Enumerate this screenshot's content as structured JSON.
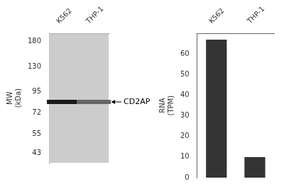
{
  "chart_data": [
    {
      "type": "gel",
      "categories": [
        "K562",
        "THP-1"
      ],
      "values": [
        83,
        83
      ],
      "colors": [
        "#1a1a1a",
        "#666666"
      ],
      "ylabel": [
        "MW",
        "(kDa)"
      ],
      "log": "y",
      "ylim": [
        38,
        200
      ],
      "yticks": [
        180,
        130,
        95,
        72,
        55,
        43
      ],
      "annotations": [
        {
          "text": "CD2AP",
          "y": 83
        }
      ],
      "grid": false
    },
    {
      "type": "bar",
      "categories": [
        "K562",
        "THP-1"
      ],
      "values": [
        67,
        10
      ],
      "color": "#333333",
      "ylabel": [
        "RNA",
        "(TPM)"
      ],
      "ylim": [
        0,
        70
      ],
      "yticks": [
        0,
        10,
        20,
        30,
        40,
        50,
        60
      ],
      "grid": false
    }
  ]
}
